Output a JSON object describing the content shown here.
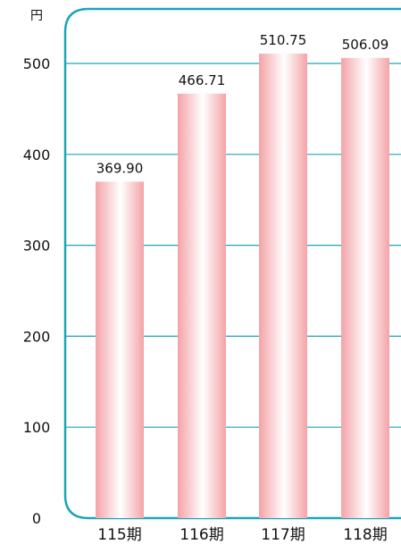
{
  "chart_data": {
    "type": "bar",
    "unit_label": "円",
    "categories": [
      "115期",
      "116期",
      "117期",
      "118期"
    ],
    "values": [
      369.9,
      466.71,
      510.75,
      506.09
    ],
    "value_labels": [
      "369.90",
      "466.71",
      "510.75",
      "506.09"
    ],
    "ylim": [
      0,
      500
    ],
    "yticks": [
      0,
      100,
      200,
      300,
      400,
      500
    ],
    "ytick_labels": [
      "0",
      "100",
      "200",
      "300",
      "400",
      "500"
    ],
    "grid": true,
    "legend": "none",
    "colors": {
      "frame": "#1aa6b5",
      "grid": "#1aa6b5",
      "bar_edge": "#f4a3a8",
      "bar_center": "#ffffff"
    }
  }
}
